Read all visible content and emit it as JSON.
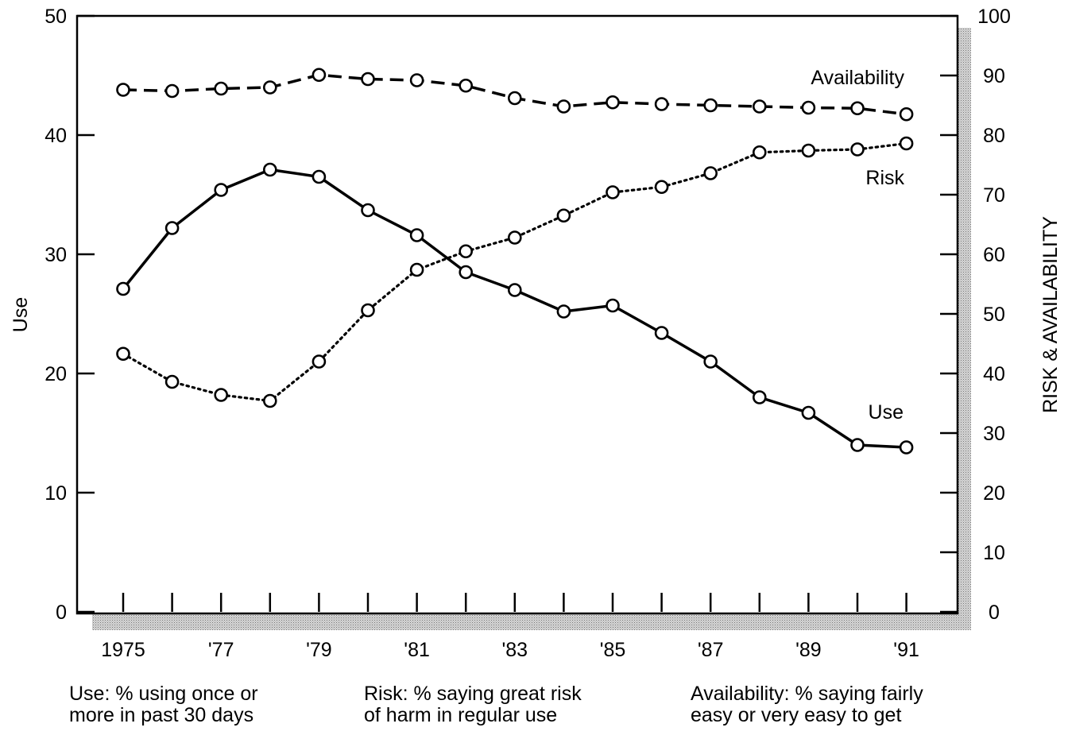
{
  "chart_data": {
    "type": "line",
    "categories": [
      "1975",
      "1976",
      "1977",
      "1978",
      "1979",
      "1980",
      "1981",
      "1982",
      "1983",
      "1984",
      "1985",
      "1986",
      "1987",
      "1988",
      "1989",
      "1990",
      "1991"
    ],
    "x_tick_labels": [
      "1975",
      "'77",
      "'79",
      "'81",
      "'83",
      "'85",
      "'87",
      "'89",
      "'91"
    ],
    "left_axis": {
      "label": "Use",
      "range": [
        0,
        50
      ],
      "ticks": [
        "0",
        "10",
        "20",
        "30",
        "40",
        "50"
      ]
    },
    "right_axis": {
      "label": "RISK & AVAILABILITY",
      "range": [
        0,
        100
      ],
      "ticks": [
        "0",
        "10",
        "20",
        "30",
        "40",
        "50",
        "60",
        "70",
        "80",
        "90",
        "100"
      ]
    },
    "series": [
      {
        "name": "Use",
        "axis": "left",
        "style": "solid",
        "values": [
          27.1,
          32.2,
          35.4,
          37.1,
          36.5,
          33.7,
          31.6,
          28.5,
          27.0,
          25.2,
          25.7,
          23.4,
          21.0,
          18.0,
          16.7,
          14.0,
          13.8
        ]
      },
      {
        "name": "Risk",
        "axis": "right",
        "style": "dotted",
        "values": [
          43.3,
          38.6,
          36.4,
          35.4,
          42.0,
          50.6,
          57.4,
          60.5,
          62.8,
          66.5,
          70.4,
          71.3,
          73.6,
          77.1,
          77.4,
          77.6,
          78.6
        ]
      },
      {
        "name": "Availability",
        "axis": "right",
        "style": "dashed",
        "values": [
          87.6,
          87.4,
          87.8,
          88.0,
          90.1,
          89.4,
          89.2,
          88.3,
          86.2,
          84.8,
          85.5,
          85.2,
          85.0,
          84.8,
          84.6,
          84.5,
          83.5
        ]
      }
    ]
  },
  "footnotes": {
    "use": {
      "line1": "Use: % using once or",
      "line2": "more in past 30 days"
    },
    "risk": {
      "line1": "Risk: % saying great risk",
      "line2": "of harm in regular use"
    },
    "availability": {
      "line1": "Availability: % saying fairly",
      "line2": "easy or very easy to get"
    }
  }
}
